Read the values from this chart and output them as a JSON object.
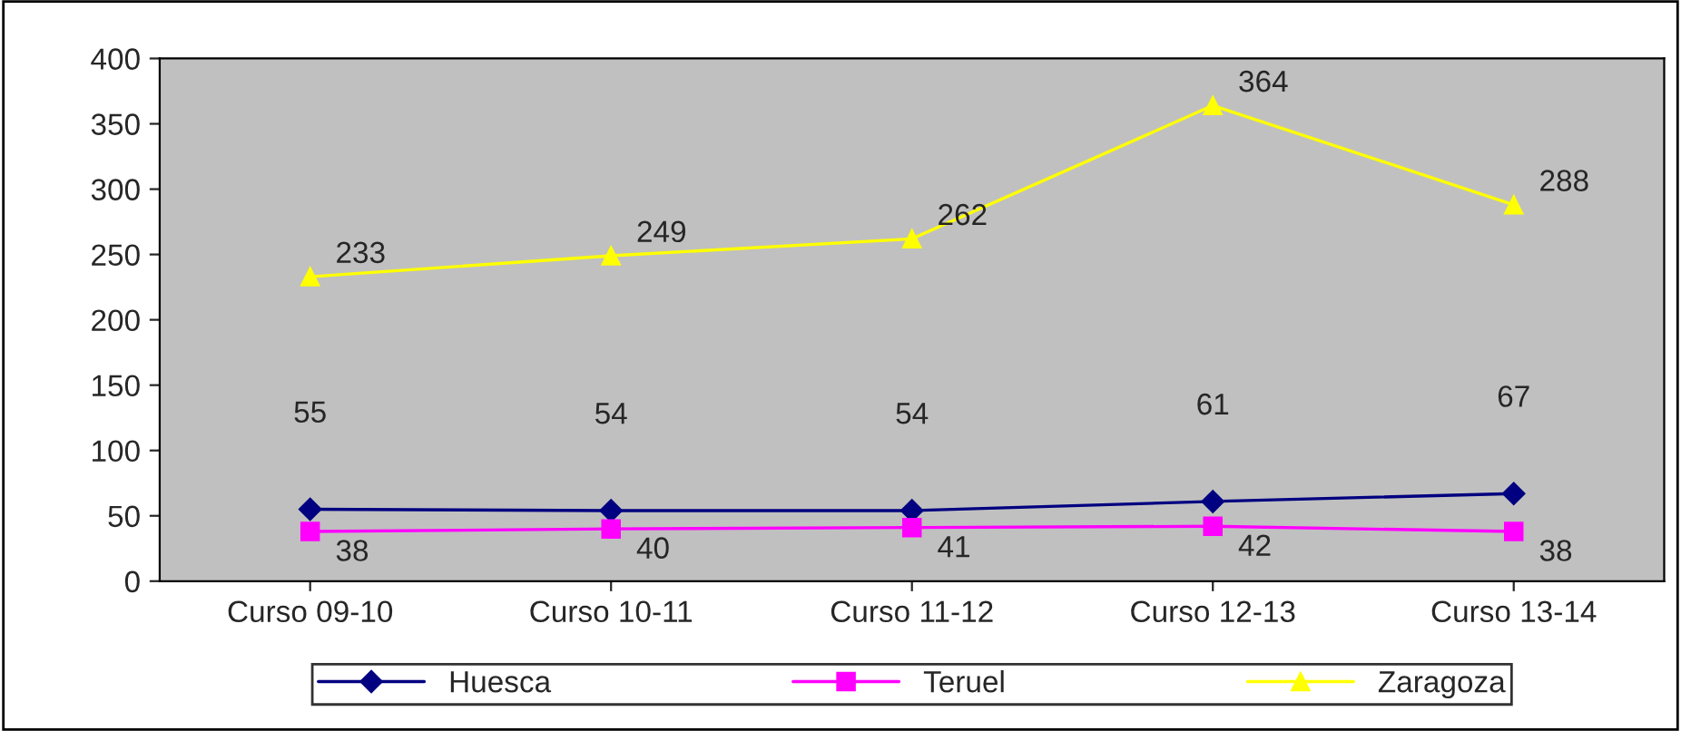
{
  "chart_data": {
    "type": "line",
    "categories": [
      "Curso 09-10",
      "Curso 10-11",
      "Curso 11-12",
      "Curso 12-13",
      "Curso 13-14"
    ],
    "series": [
      {
        "name": "Huesca",
        "color": "#000080",
        "marker": "diamond",
        "values": [
          55,
          54,
          54,
          61,
          67
        ]
      },
      {
        "name": "Teruel",
        "color": "#ff00ff",
        "marker": "square",
        "values": [
          38,
          40,
          41,
          42,
          38
        ]
      },
      {
        "name": "Zaragoza",
        "color": "#ffff00",
        "marker": "triangle",
        "values": [
          233,
          249,
          262,
          364,
          288
        ]
      }
    ],
    "ylim": [
      0,
      400
    ],
    "yticks": [
      0,
      50,
      100,
      150,
      200,
      250,
      300,
      350,
      400
    ],
    "grid": false,
    "legend": "bottom",
    "data_labels": true,
    "line_style": "solid"
  }
}
